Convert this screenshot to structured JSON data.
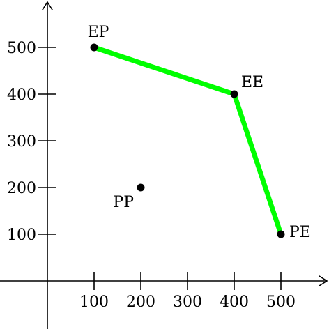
{
  "chart_data": {
    "type": "scatter",
    "title": "",
    "xlabel": "",
    "ylabel": "",
    "xlim": [
      -100,
      600
    ],
    "ylim": [
      -100,
      600
    ],
    "x_ticks": [
      100,
      200,
      300,
      400,
      500
    ],
    "y_ticks": [
      100,
      200,
      300,
      400,
      500
    ],
    "x_tick_labels": [
      "100",
      "200",
      "300",
      "400",
      "500"
    ],
    "y_tick_labels": [
      "100",
      "200",
      "300",
      "400",
      "500"
    ],
    "grid": false,
    "axes_color": "#000000",
    "point_color": "#000000",
    "line_color": "#00ff00",
    "points": [
      {
        "label": "EP",
        "x": 100,
        "y": 500
      },
      {
        "label": "EE",
        "x": 400,
        "y": 400
      },
      {
        "label": "PE",
        "x": 500,
        "y": 100
      },
      {
        "label": "PP",
        "x": 200,
        "y": 200
      }
    ],
    "frontier": {
      "points": [
        "EP",
        "EE",
        "PE"
      ]
    }
  }
}
